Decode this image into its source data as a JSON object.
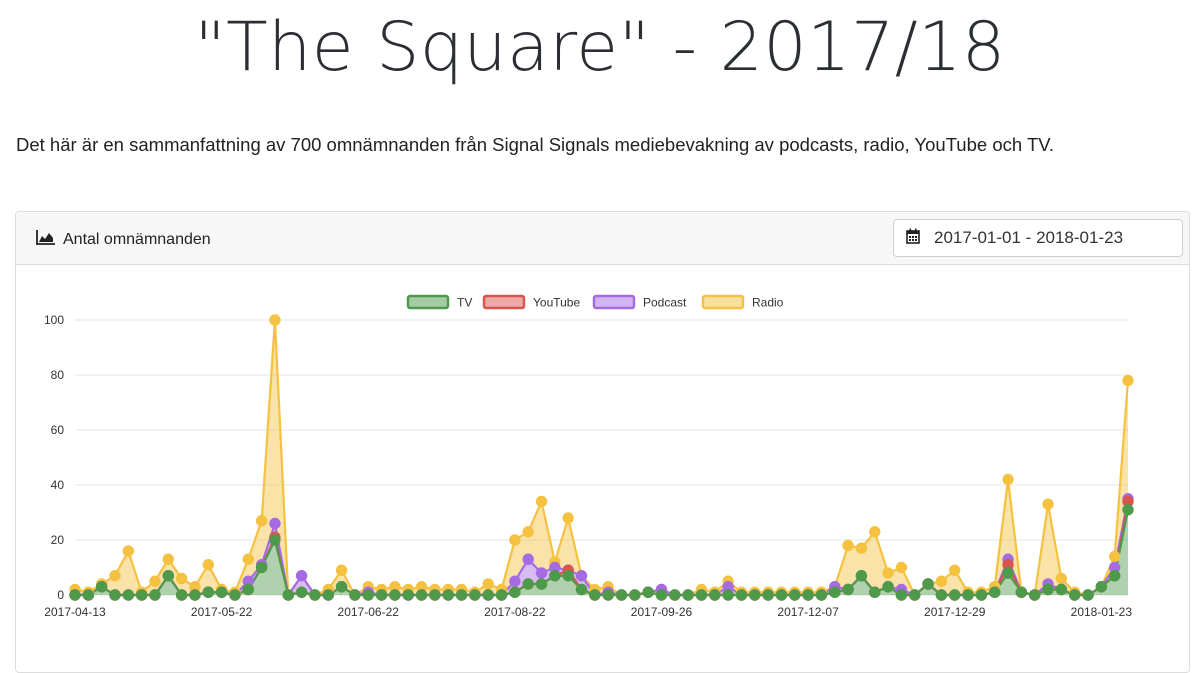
{
  "page": {
    "title": "\"The Square\" - 2017/18",
    "summary": "Det här är en sammanfattning av 700 omnämnanden från Signal Signals mediebevakning av podcasts, radio, YouTube och TV."
  },
  "card": {
    "title": "Antal omnämnanden",
    "title_icon": "area-chart-icon",
    "date_icon": "calendar-icon",
    "date_range": "2017-01-01 - 2018-01-23"
  },
  "chart_data": {
    "type": "area",
    "stacked": true,
    "grid": "horizontal",
    "legend_position": "top",
    "ylim": [
      0,
      100
    ],
    "y_ticks": [
      0,
      20,
      40,
      60,
      80,
      100
    ],
    "x_tick_labels": [
      "2017-04-13",
      "2017-05-22",
      "2017-06-22",
      "2017-08-22",
      "2017-09-26",
      "2017-12-07",
      "2017-12-29",
      "2018-01-23"
    ],
    "x_tick_index": [
      0,
      11,
      22,
      33,
      44,
      55,
      66,
      77
    ],
    "colors": {
      "TV": "#4e9a4b",
      "YouTube": "#d9534f",
      "Podcast": "#a46be3",
      "Radio": "#f5c140"
    },
    "series": [
      {
        "name": "TV",
        "values": [
          0,
          0,
          3,
          0,
          0,
          0,
          0,
          7,
          0,
          0,
          1,
          1,
          0,
          2,
          10,
          20,
          0,
          1,
          0,
          0,
          3,
          0,
          0,
          0,
          0,
          0,
          0,
          0,
          0,
          0,
          0,
          0,
          0,
          1,
          4,
          4,
          7,
          7,
          2,
          0,
          0,
          0,
          0,
          1,
          0,
          0,
          0,
          0,
          0,
          0,
          0,
          0,
          0,
          0,
          0,
          0,
          0,
          1,
          2,
          7,
          1,
          3,
          0,
          0,
          4,
          0,
          0,
          0,
          0,
          1,
          8,
          1,
          0,
          2,
          2,
          0,
          0,
          3,
          7,
          31
        ]
      },
      {
        "name": "YouTube",
        "values": [
          0,
          0,
          0,
          0,
          0,
          0,
          0,
          0,
          0,
          0,
          0,
          0,
          0,
          0,
          0,
          1,
          0,
          0,
          0,
          0,
          0,
          0,
          0,
          0,
          0,
          0,
          0,
          0,
          0,
          0,
          0,
          0,
          0,
          0,
          0,
          0,
          0,
          2,
          0,
          0,
          0,
          0,
          0,
          0,
          0,
          0,
          0,
          0,
          0,
          0,
          0,
          0,
          0,
          0,
          0,
          0,
          0,
          0,
          0,
          0,
          0,
          0,
          0,
          0,
          0,
          0,
          0,
          0,
          0,
          0,
          3,
          0,
          0,
          0,
          0,
          0,
          0,
          0,
          0,
          3
        ]
      },
      {
        "name": "Podcast",
        "values": [
          0,
          0,
          0,
          0,
          0,
          0,
          0,
          0,
          0,
          0,
          0,
          0,
          0,
          3,
          1,
          5,
          0,
          6,
          0,
          0,
          0,
          0,
          1,
          0,
          0,
          0,
          0,
          0,
          0,
          0,
          0,
          0,
          0,
          4,
          9,
          4,
          3,
          0,
          5,
          0,
          1,
          0,
          0,
          0,
          2,
          0,
          0,
          0,
          0,
          3,
          0,
          0,
          0,
          0,
          0,
          0,
          0,
          2,
          0,
          0,
          0,
          0,
          2,
          0,
          0,
          0,
          0,
          0,
          0,
          0,
          2,
          0,
          0,
          2,
          0,
          0,
          0,
          0,
          3,
          1
        ]
      },
      {
        "name": "Radio",
        "values": [
          2,
          1,
          1,
          7,
          16,
          1,
          5,
          6,
          6,
          3,
          10,
          1,
          1,
          8,
          16,
          74,
          0,
          0,
          0,
          2,
          6,
          0,
          2,
          2,
          3,
          2,
          3,
          2,
          2,
          2,
          1,
          4,
          2,
          15,
          10,
          26,
          2,
          19,
          0,
          2,
          2,
          0,
          0,
          0,
          0,
          0,
          0,
          2,
          1,
          2,
          1,
          1,
          1,
          1,
          1,
          1,
          1,
          0,
          16,
          10,
          22,
          5,
          8,
          0,
          0,
          5,
          9,
          1,
          1,
          2,
          29,
          0,
          0,
          29,
          4,
          1,
          0,
          0,
          4,
          43
        ]
      }
    ]
  }
}
